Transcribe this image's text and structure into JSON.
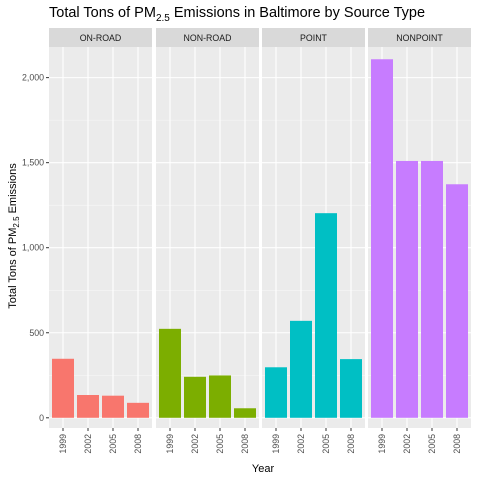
{
  "chart_data": {
    "type": "bar",
    "title": {
      "prefix": "Total Tons of PM",
      "subscript": "2.5",
      "suffix": " Emissions in Baltimore by Source Type"
    },
    "xlabel": "Year",
    "ylabel": {
      "prefix": "Total Tons of PM",
      "subscript": "2.5",
      "suffix": " Emissions"
    },
    "categories": [
      "1999",
      "2002",
      "2005",
      "2008"
    ],
    "ylim": [
      -60,
      2180
    ],
    "yticks": [
      0,
      500,
      1000,
      1500,
      2000
    ],
    "ytick_labels": [
      "0",
      "500",
      "1,000",
      "1,500",
      "2,000"
    ],
    "grid": true,
    "legend": "none",
    "facets": [
      {
        "name": "ON-ROAD",
        "color": "#F8766D",
        "values": [
          347,
          134,
          130,
          88
        ]
      },
      {
        "name": "NON-ROAD",
        "color": "#7CAE00",
        "values": [
          523,
          241,
          249,
          56
        ]
      },
      {
        "name": "POINT",
        "color": "#00BFC4",
        "values": [
          297,
          570,
          1203,
          345
        ]
      },
      {
        "name": "NONPOINT",
        "color": "#C77CFF",
        "values": [
          2108,
          1510,
          1510,
          1373
        ]
      }
    ]
  },
  "colors": {
    "panel_background": "#EBEBEB",
    "strip_background": "#D9D9D9",
    "major_grid": "#FFFFFF"
  }
}
